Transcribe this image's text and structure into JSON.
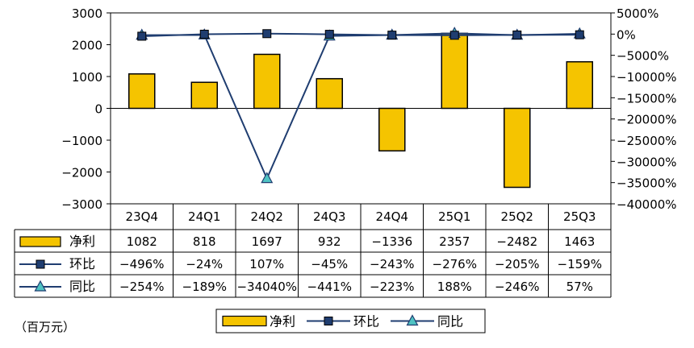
{
  "chart_data": {
    "type": "bar",
    "categories": [
      "23Q4",
      "24Q1",
      "24Q2",
      "24Q3",
      "24Q4",
      "25Q1",
      "25Q2",
      "25Q3"
    ],
    "series": [
      {
        "name": "净利",
        "type": "bar",
        "axis": "left",
        "color": "#F5C400",
        "values": [
          1082,
          818,
          1697,
          932,
          -1336,
          2357,
          -2482,
          1463
        ],
        "table_values": [
          "1082",
          "818",
          "1697",
          "932",
          "−1336",
          "2357",
          "−2482",
          "1463"
        ]
      },
      {
        "name": "环比",
        "type": "line",
        "axis": "right",
        "marker": "square",
        "color": "#1F3D70",
        "values": [
          -496,
          -24,
          107,
          -45,
          -243,
          -276,
          -205,
          -159
        ],
        "table_values": [
          "−496%",
          "−24%",
          "107%",
          "−45%",
          "−243%",
          "−276%",
          "−205%",
          "−159%"
        ]
      },
      {
        "name": "同比",
        "type": "line",
        "axis": "right",
        "marker": "triangle",
        "color": "#1F3D70",
        "values": [
          -254,
          -189,
          -34040,
          -441,
          -223,
          188,
          -246,
          57
        ],
        "table_values": [
          "−254%",
          "−189%",
          "−34040%",
          "−441%",
          "−223%",
          "188%",
          "−246%",
          "57%"
        ]
      }
    ],
    "y_left": {
      "min": -3000,
      "max": 3000,
      "ticks": [
        3000,
        2000,
        1000,
        0,
        -1000,
        -2000,
        -3000
      ],
      "tick_labels": [
        "3000",
        "2000",
        "1000",
        "0",
        "−1000",
        "−2000",
        "−3000"
      ]
    },
    "y_right": {
      "min": -40000,
      "max": 5000,
      "ticks": [
        5000,
        0,
        -5000,
        -10000,
        -15000,
        -20000,
        -25000,
        -30000,
        -35000,
        -40000
      ],
      "tick_labels": [
        "5000%",
        "0%",
        "−5000%",
        "−10000%",
        "−15000%",
        "−20000%",
        "−25000%",
        "−30000%",
        "−35000%",
        "−40000%"
      ]
    },
    "unit_note": "（百万元）",
    "legend": {
      "position": "bottom-center",
      "items": [
        "净利",
        "环比",
        "同比"
      ]
    },
    "grid": false,
    "data_table": true
  }
}
